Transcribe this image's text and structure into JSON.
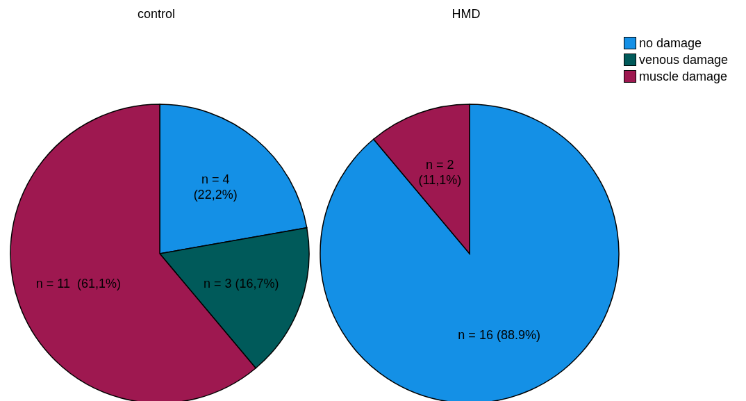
{
  "chart_data": [
    {
      "type": "pie",
      "title": "control",
      "categories": [
        "no damage",
        "venous damage",
        "muscle damage"
      ],
      "values": [
        4,
        3,
        11
      ],
      "colors": [
        "#1490e6",
        "#005a5a",
        "#9e1850"
      ],
      "value_labels": [
        "n = 4\n(22,2%)",
        "n = 3 (16,7%)",
        "n = 11  (61,1%)"
      ],
      "legend": "top right"
    },
    {
      "type": "pie",
      "title": "HMD",
      "categories": [
        null,
        null,
        null
      ],
      "values": [
        16,
        0,
        2
      ],
      "colors": [
        "#1490e6",
        "#005a5a",
        "#9e1850"
      ],
      "value_labels": [
        "n = 16 (88.9%)",
        null,
        "n = 2\n(11,1%)"
      ]
    }
  ]
}
